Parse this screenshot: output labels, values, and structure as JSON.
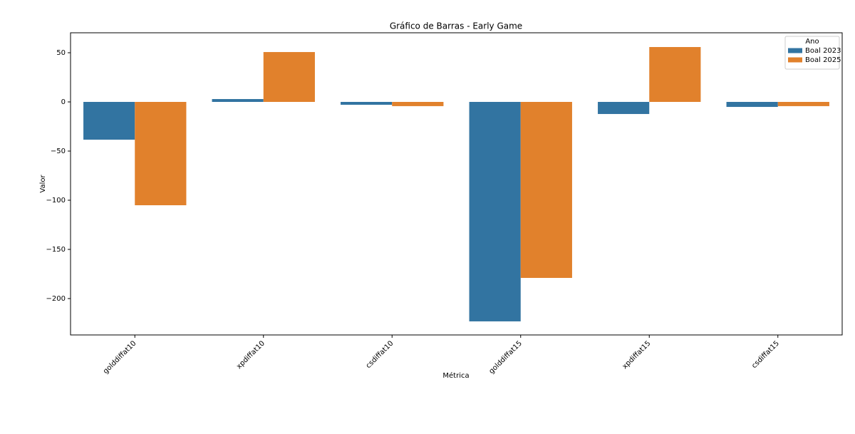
{
  "chart_data": {
    "type": "bar",
    "title": "Gráfico de Barras - Early Game",
    "x_label": "Métrica",
    "y_label": "Valor",
    "categories": [
      "golddiffat10",
      "xpdiffat10",
      "csdiffat10",
      "golddiffat15",
      "xpdiffat15",
      "csdiffat15"
    ],
    "series": [
      {
        "name": "Boal 2023",
        "color": "#3274a1",
        "values": [
          -38.4,
          2.9,
          -2.9,
          -223.2,
          -12.3,
          -5.1
        ]
      },
      {
        "name": "Boal 2025",
        "color": "#e1812c",
        "values": [
          -105.1,
          50.7,
          -4.3,
          -179.0,
          55.8,
          -4.3
        ]
      }
    ],
    "legend_title": "Ano",
    "legend_position": "upper right",
    "ylim": [
      -237,
      70.3
    ],
    "yticks": [
      {
        "value": -200,
        "label": "−200"
      },
      {
        "value": -150,
        "label": "−150"
      },
      {
        "value": -100,
        "label": "−100"
      },
      {
        "value": -50,
        "label": "−50"
      },
      0,
      50
    ]
  }
}
